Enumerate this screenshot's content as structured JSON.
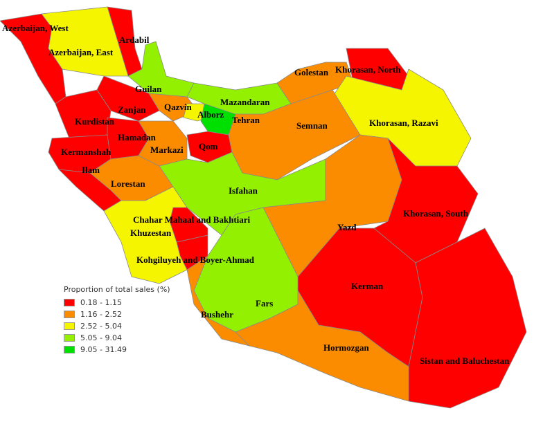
{
  "legend": {
    "title": "Proportion of total sales (%)",
    "classes": [
      {
        "label": "0.18 - 1.15",
        "color": "#ff0000"
      },
      {
        "label": "1.16 - 2.52",
        "color": "#fb8c00"
      },
      {
        "label": "2.52 - 5.04",
        "color": "#f5f500"
      },
      {
        "label": "5.05 - 9.04",
        "color": "#92f000"
      },
      {
        "label": "9.05 - 31.49",
        "color": "#00e000"
      }
    ]
  },
  "provinces": [
    {
      "id": "azw",
      "name": "Azerbaijan, West",
      "class": 0
    },
    {
      "id": "ard",
      "name": "Ardabil",
      "class": 0
    },
    {
      "id": "aze",
      "name": "Azerbaijan, East",
      "class": 2
    },
    {
      "id": "gui",
      "name": "Guilan",
      "class": 3
    },
    {
      "id": "zan",
      "name": "Zanjan",
      "class": 0
    },
    {
      "id": "kur",
      "name": "Kurdistan",
      "class": 0
    },
    {
      "id": "ker",
      "name": "Kermanshah",
      "class": 0
    },
    {
      "id": "ham",
      "name": "Hamadan",
      "class": 0
    },
    {
      "id": "ila",
      "name": "Ilam",
      "class": 0
    },
    {
      "id": "lor",
      "name": "Lorestan",
      "class": 1
    },
    {
      "id": "mar",
      "name": "Markazi",
      "class": 1
    },
    {
      "id": "qaz",
      "name": "Qazvin",
      "class": 1
    },
    {
      "id": "alb",
      "name": "Alborz",
      "class": 2
    },
    {
      "id": "teh",
      "name": "Tehran",
      "class": 4
    },
    {
      "id": "maz",
      "name": "Mazandaran",
      "class": 3
    },
    {
      "id": "qom",
      "name": "Qom",
      "class": 0
    },
    {
      "id": "gol",
      "name": "Golestan",
      "class": 1
    },
    {
      "id": "khn",
      "name": "Khorasan, North",
      "class": 0
    },
    {
      "id": "khr",
      "name": "Khorasan, Razavi",
      "class": 2
    },
    {
      "id": "sem",
      "name": "Semnan",
      "class": 1
    },
    {
      "id": "isf",
      "name": "Isfahan",
      "class": 3
    },
    {
      "id": "yaz",
      "name": "Yazd",
      "class": 1
    },
    {
      "id": "khs",
      "name": "Khorasan, South",
      "class": 0
    },
    {
      "id": "krm",
      "name": "Kerman",
      "class": 0
    },
    {
      "id": "sis",
      "name": "Sistan and Baluchestan",
      "class": 0
    },
    {
      "id": "hor",
      "name": "Hormozgan",
      "class": 1
    },
    {
      "id": "far",
      "name": "Fars",
      "class": 3
    },
    {
      "id": "bus",
      "name": "Bushehr",
      "class": 1
    },
    {
      "id": "koh",
      "name": "Kohgiluyeh and Boyer-Ahmad",
      "class": 0
    },
    {
      "id": "cha",
      "name": "Chahar Mahaal and Bakhtiari",
      "class": 0
    },
    {
      "id": "khu",
      "name": "Khuzestan",
      "class": 2
    }
  ]
}
